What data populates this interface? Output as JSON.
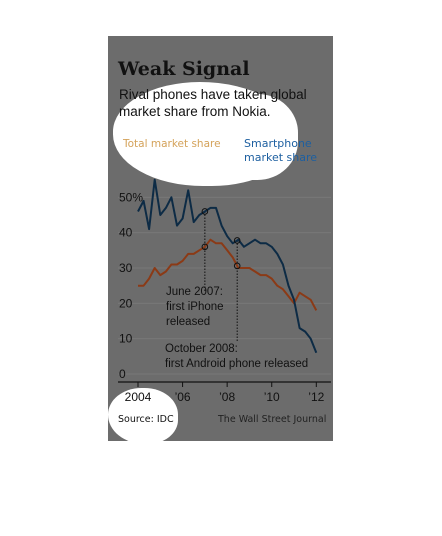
{
  "figure": {
    "title": "Weak Signal",
    "subtitle": "Rival phones have taken global market share from Nokia.",
    "source": "Source: IDC",
    "credit": "The Wall Street Journal"
  },
  "colors": {
    "background": "#6c6c6c",
    "total_series": "#8b3a16",
    "smartphone_series": "#0d2b45",
    "total_label": "#d4a25a",
    "smartphone_label": "#1d5fa0",
    "highlight": "#ffffff"
  },
  "chart_data": {
    "type": "line",
    "title": "Weak Signal",
    "subtitle": "Rival phones have taken global market share from Nokia.",
    "xlabel": "",
    "ylabel": "",
    "xlim": [
      2004.0,
      2012.3
    ],
    "ylim": [
      0,
      60
    ],
    "x_tick_values": [
      2004,
      2006,
      2008,
      2010,
      2012
    ],
    "x_tick_labels": [
      "2004",
      "’06",
      "’08",
      "’10",
      "’12"
    ],
    "y_tick_values": [
      0,
      10,
      20,
      30,
      40,
      50
    ],
    "y_tick_labels": [
      "0",
      "10",
      "20",
      "30",
      "40",
      "50%"
    ],
    "grid": true,
    "series": [
      {
        "name": "Total market share",
        "x": [
          2004.0,
          2004.25,
          2004.5,
          2004.75,
          2005.0,
          2005.25,
          2005.5,
          2005.75,
          2006.0,
          2006.25,
          2006.5,
          2006.75,
          2007.0,
          2007.25,
          2007.5,
          2007.75,
          2008.0,
          2008.25,
          2008.5,
          2008.75,
          2009.0,
          2009.25,
          2009.5,
          2009.75,
          2010.0,
          2010.25,
          2010.5,
          2010.75,
          2011.0,
          2011.25,
          2011.5,
          2011.75,
          2012.0
        ],
        "y": [
          25,
          25,
          27,
          30,
          28,
          29,
          31,
          31,
          32,
          34,
          34,
          35,
          36,
          38,
          37,
          37,
          35,
          33,
          30,
          30,
          30,
          29,
          28,
          28,
          27,
          25,
          24,
          22,
          20,
          23,
          22,
          21,
          18
        ]
      },
      {
        "name": "Smartphone market share",
        "x": [
          2004.0,
          2004.25,
          2004.5,
          2004.75,
          2005.0,
          2005.25,
          2005.5,
          2005.75,
          2006.0,
          2006.25,
          2006.5,
          2006.75,
          2007.0,
          2007.25,
          2007.5,
          2007.75,
          2008.0,
          2008.25,
          2008.5,
          2008.75,
          2009.0,
          2009.25,
          2009.5,
          2009.75,
          2010.0,
          2010.25,
          2010.5,
          2010.75,
          2011.0,
          2011.25,
          2011.5,
          2011.75,
          2012.0
        ],
        "y": [
          46,
          49,
          41,
          55,
          45,
          47,
          50,
          42,
          44,
          52,
          43,
          45,
          46,
          47,
          47,
          42,
          39,
          37,
          38,
          36,
          37,
          38,
          37,
          37,
          36,
          34,
          31,
          25,
          21,
          13,
          12,
          10,
          6
        ]
      }
    ],
    "annotations": [
      {
        "text": [
          "June 2007:",
          "first iPhone",
          "released"
        ],
        "x": 2007.0
      },
      {
        "text": [
          "October 2008:",
          "first Android phone released"
        ],
        "x": 2008.45
      }
    ],
    "legend": [
      "Total market share",
      "Smartphone market share"
    ]
  }
}
